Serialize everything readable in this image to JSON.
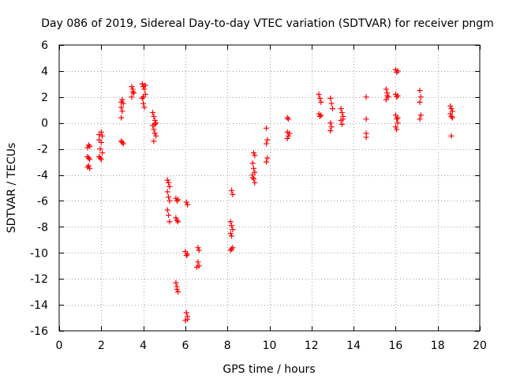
{
  "chart_data": {
    "type": "scatter",
    "title": "Day 086 of 2019, Sidereal Day-to-day VTEC variation (SDTVAR) for receiver pngm",
    "xlabel": "GPS time / hours",
    "ylabel": "SDTVAR / TECUs",
    "xlim": [
      0,
      20
    ],
    "ylim": [
      -16,
      6
    ],
    "xticks": [
      0,
      2,
      4,
      6,
      8,
      10,
      12,
      14,
      16,
      18,
      20
    ],
    "yticks": [
      -16,
      -14,
      -12,
      -10,
      -8,
      -6,
      -4,
      -2,
      0,
      2,
      4,
      6
    ],
    "grid": true,
    "marker": "plus",
    "series": [
      {
        "name": "SDTVAR",
        "color": "#ff0000",
        "points": [
          [
            1.35,
            -1.9
          ],
          [
            1.4,
            -1.7
          ],
          [
            1.45,
            -1.8
          ],
          [
            1.35,
            -2.6
          ],
          [
            1.45,
            -2.8
          ],
          [
            1.4,
            -2.7
          ],
          [
            1.35,
            -3.4
          ],
          [
            1.45,
            -3.5
          ],
          [
            1.4,
            -3.3
          ],
          [
            1.9,
            -0.9
          ],
          [
            2.0,
            -0.7
          ],
          [
            2.05,
            -1.0
          ],
          [
            1.9,
            -1.3
          ],
          [
            2.0,
            -1.5
          ],
          [
            1.95,
            -2.0
          ],
          [
            2.05,
            -2.3
          ],
          [
            1.9,
            -2.6
          ],
          [
            2.0,
            -2.8
          ],
          [
            1.95,
            -2.7
          ],
          [
            2.95,
            1.6
          ],
          [
            3.0,
            1.8
          ],
          [
            3.05,
            1.5
          ],
          [
            2.95,
            1.2
          ],
          [
            3.0,
            0.9
          ],
          [
            2.95,
            0.4
          ],
          [
            2.95,
            -1.4
          ],
          [
            3.05,
            -1.6
          ],
          [
            3.0,
            -1.5
          ],
          [
            3.45,
            2.8
          ],
          [
            3.5,
            2.6
          ],
          [
            3.55,
            2.3
          ],
          [
            3.45,
            2.0
          ],
          [
            3.5,
            2.4
          ],
          [
            3.95,
            3.0
          ],
          [
            4.0,
            2.8
          ],
          [
            4.05,
            2.6
          ],
          [
            4.1,
            2.2
          ],
          [
            3.95,
            1.9
          ],
          [
            4.0,
            1.5
          ],
          [
            4.05,
            1.2
          ],
          [
            4.1,
            2.9
          ],
          [
            4.0,
            2.0
          ],
          [
            4.45,
            0.8
          ],
          [
            4.5,
            0.5
          ],
          [
            4.55,
            0.2
          ],
          [
            4.6,
            0.0
          ],
          [
            4.45,
            -0.2
          ],
          [
            4.5,
            -0.5
          ],
          [
            4.55,
            -0.8
          ],
          [
            4.6,
            -1.0
          ],
          [
            4.5,
            -1.4
          ],
          [
            4.55,
            -0.1
          ],
          [
            5.15,
            -4.4
          ],
          [
            5.2,
            -4.6
          ],
          [
            5.25,
            -4.9
          ],
          [
            5.15,
            -5.3
          ],
          [
            5.2,
            -5.7
          ],
          [
            5.25,
            -6.0
          ],
          [
            5.15,
            -6.7
          ],
          [
            5.2,
            -7.1
          ],
          [
            5.25,
            -7.6
          ],
          [
            5.55,
            -5.8
          ],
          [
            5.6,
            -6.0
          ],
          [
            5.65,
            -5.9
          ],
          [
            5.55,
            -7.3
          ],
          [
            5.6,
            -7.5
          ],
          [
            5.65,
            -7.6
          ],
          [
            5.55,
            -12.3
          ],
          [
            5.6,
            -12.8
          ],
          [
            5.65,
            -13.0
          ],
          [
            5.6,
            -12.6
          ],
          [
            6.05,
            -6.1
          ],
          [
            6.1,
            -6.3
          ],
          [
            6.0,
            -9.9
          ],
          [
            6.05,
            -10.2
          ],
          [
            6.1,
            -10.1
          ],
          [
            6.05,
            -14.6
          ],
          [
            6.1,
            -14.9
          ],
          [
            6.0,
            -15.2
          ],
          [
            6.1,
            -15.1
          ],
          [
            6.6,
            -9.6
          ],
          [
            6.65,
            -9.8
          ],
          [
            6.6,
            -10.7
          ],
          [
            6.65,
            -11.0
          ],
          [
            6.55,
            -11.1
          ],
          [
            8.2,
            -5.2
          ],
          [
            8.25,
            -5.5
          ],
          [
            8.15,
            -7.6
          ],
          [
            8.2,
            -7.9
          ],
          [
            8.25,
            -8.2
          ],
          [
            8.15,
            -8.5
          ],
          [
            8.2,
            -8.7
          ],
          [
            8.25,
            -9.6
          ],
          [
            8.15,
            -9.8
          ],
          [
            8.2,
            -9.7
          ],
          [
            9.25,
            -2.3
          ],
          [
            9.3,
            -2.5
          ],
          [
            9.2,
            -3.1
          ],
          [
            9.25,
            -3.5
          ],
          [
            9.3,
            -3.8
          ],
          [
            9.2,
            -4.0
          ],
          [
            9.25,
            -4.3
          ],
          [
            9.3,
            -4.6
          ],
          [
            9.2,
            -4.2
          ],
          [
            9.85,
            -0.4
          ],
          [
            9.9,
            -1.3
          ],
          [
            9.85,
            -1.6
          ],
          [
            9.9,
            -2.7
          ],
          [
            9.85,
            -3.0
          ],
          [
            10.85,
            0.4
          ],
          [
            10.9,
            0.3
          ],
          [
            10.85,
            -0.7
          ],
          [
            10.9,
            -1.0
          ],
          [
            10.85,
            -1.2
          ],
          [
            10.95,
            -0.8
          ],
          [
            12.35,
            2.2
          ],
          [
            12.4,
            1.9
          ],
          [
            12.45,
            1.6
          ],
          [
            12.35,
            0.7
          ],
          [
            12.4,
            0.5
          ],
          [
            12.45,
            0.6
          ],
          [
            12.9,
            1.9
          ],
          [
            12.95,
            1.5
          ],
          [
            13.0,
            1.1
          ],
          [
            12.9,
            0.0
          ],
          [
            12.95,
            -0.3
          ],
          [
            12.9,
            -0.6
          ],
          [
            13.4,
            1.1
          ],
          [
            13.45,
            0.8
          ],
          [
            13.5,
            0.5
          ],
          [
            13.4,
            0.2
          ],
          [
            13.45,
            -0.1
          ],
          [
            13.5,
            0.3
          ],
          [
            14.6,
            2.0
          ],
          [
            14.6,
            0.3
          ],
          [
            14.6,
            -0.8
          ],
          [
            14.6,
            -1.1
          ],
          [
            15.55,
            2.6
          ],
          [
            15.6,
            2.3
          ],
          [
            15.65,
            2.0
          ],
          [
            15.55,
            1.8
          ],
          [
            15.6,
            2.1
          ],
          [
            16.0,
            4.1
          ],
          [
            16.05,
            3.9
          ],
          [
            16.1,
            4.0
          ],
          [
            16.0,
            2.2
          ],
          [
            16.05,
            2.0
          ],
          [
            16.1,
            2.1
          ],
          [
            16.0,
            0.6
          ],
          [
            16.05,
            0.3
          ],
          [
            16.1,
            0.0
          ],
          [
            16.0,
            -0.3
          ],
          [
            16.05,
            -0.5
          ],
          [
            16.1,
            0.4
          ],
          [
            17.15,
            2.5
          ],
          [
            17.2,
            2.0
          ],
          [
            17.15,
            1.6
          ],
          [
            17.2,
            0.6
          ],
          [
            17.15,
            0.3
          ],
          [
            18.6,
            1.3
          ],
          [
            18.65,
            1.1
          ],
          [
            18.7,
            0.9
          ],
          [
            18.6,
            0.7
          ],
          [
            18.65,
            0.5
          ],
          [
            18.7,
            0.4
          ],
          [
            18.65,
            -1.0
          ]
        ]
      }
    ]
  }
}
